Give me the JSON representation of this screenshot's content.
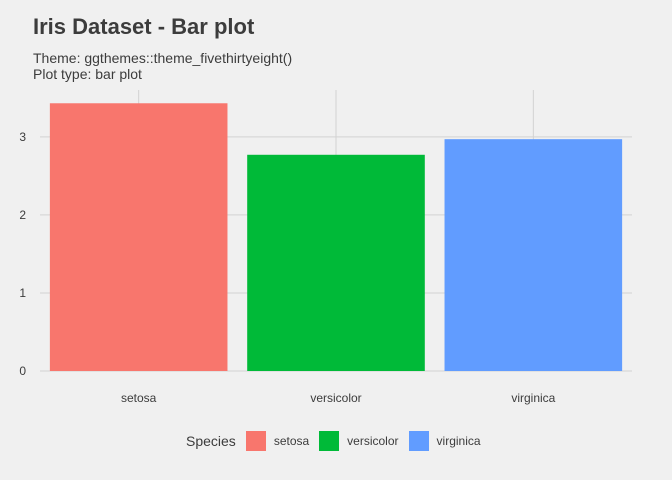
{
  "title": "Iris Dataset - Bar plot",
  "subtitle_line1": "Theme: ggthemes::theme_fivethirtyeight()",
  "subtitle_line2": "Plot type: bar plot",
  "colors": {
    "background": "#f0f0f0",
    "grid": "#d2d2d2",
    "setosa": "#F8766D",
    "versicolor": "#00BA38",
    "virginica": "#619CFF"
  },
  "legend": {
    "title": "Species",
    "items": [
      {
        "label": "setosa",
        "color": "#F8766D"
      },
      {
        "label": "versicolor",
        "color": "#00BA38"
      },
      {
        "label": "virginica",
        "color": "#619CFF"
      }
    ]
  },
  "chart_data": {
    "type": "bar",
    "title": "Iris Dataset - Bar plot",
    "categories": [
      "setosa",
      "versicolor",
      "virginica"
    ],
    "values": [
      3.43,
      2.77,
      2.97
    ],
    "colors": [
      "#F8766D",
      "#00BA38",
      "#619CFF"
    ],
    "xlabel": "",
    "ylabel": "",
    "ylim": [
      0,
      3.6
    ],
    "yticks": [
      0,
      1,
      2,
      3
    ],
    "grid": true,
    "legend_position": "bottom"
  }
}
